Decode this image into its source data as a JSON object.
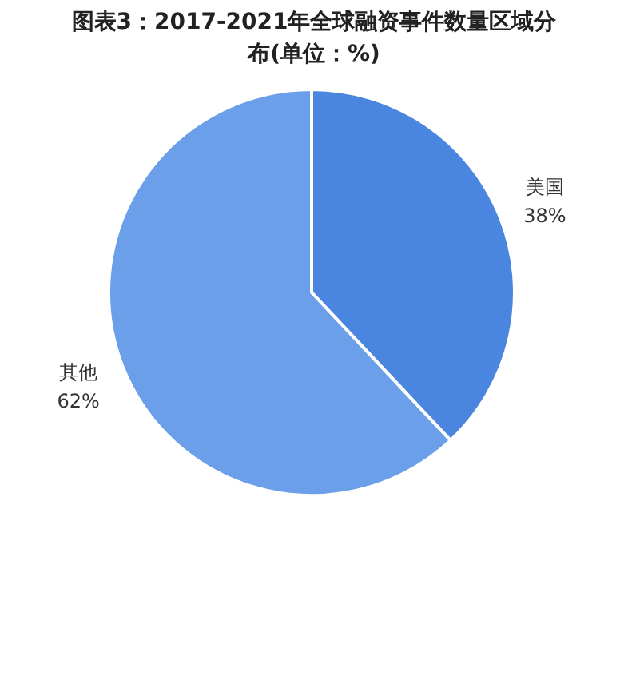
{
  "chart_data": {
    "type": "pie",
    "title": "图表3：2017-2021年全球融资事件数量区域分布(单位：%)",
    "categories": [
      "美国",
      "其他"
    ],
    "values": [
      38,
      62
    ],
    "value_labels": [
      "38%",
      "62%"
    ],
    "colors": [
      "#4a86e0",
      "#6b9fe9"
    ]
  }
}
